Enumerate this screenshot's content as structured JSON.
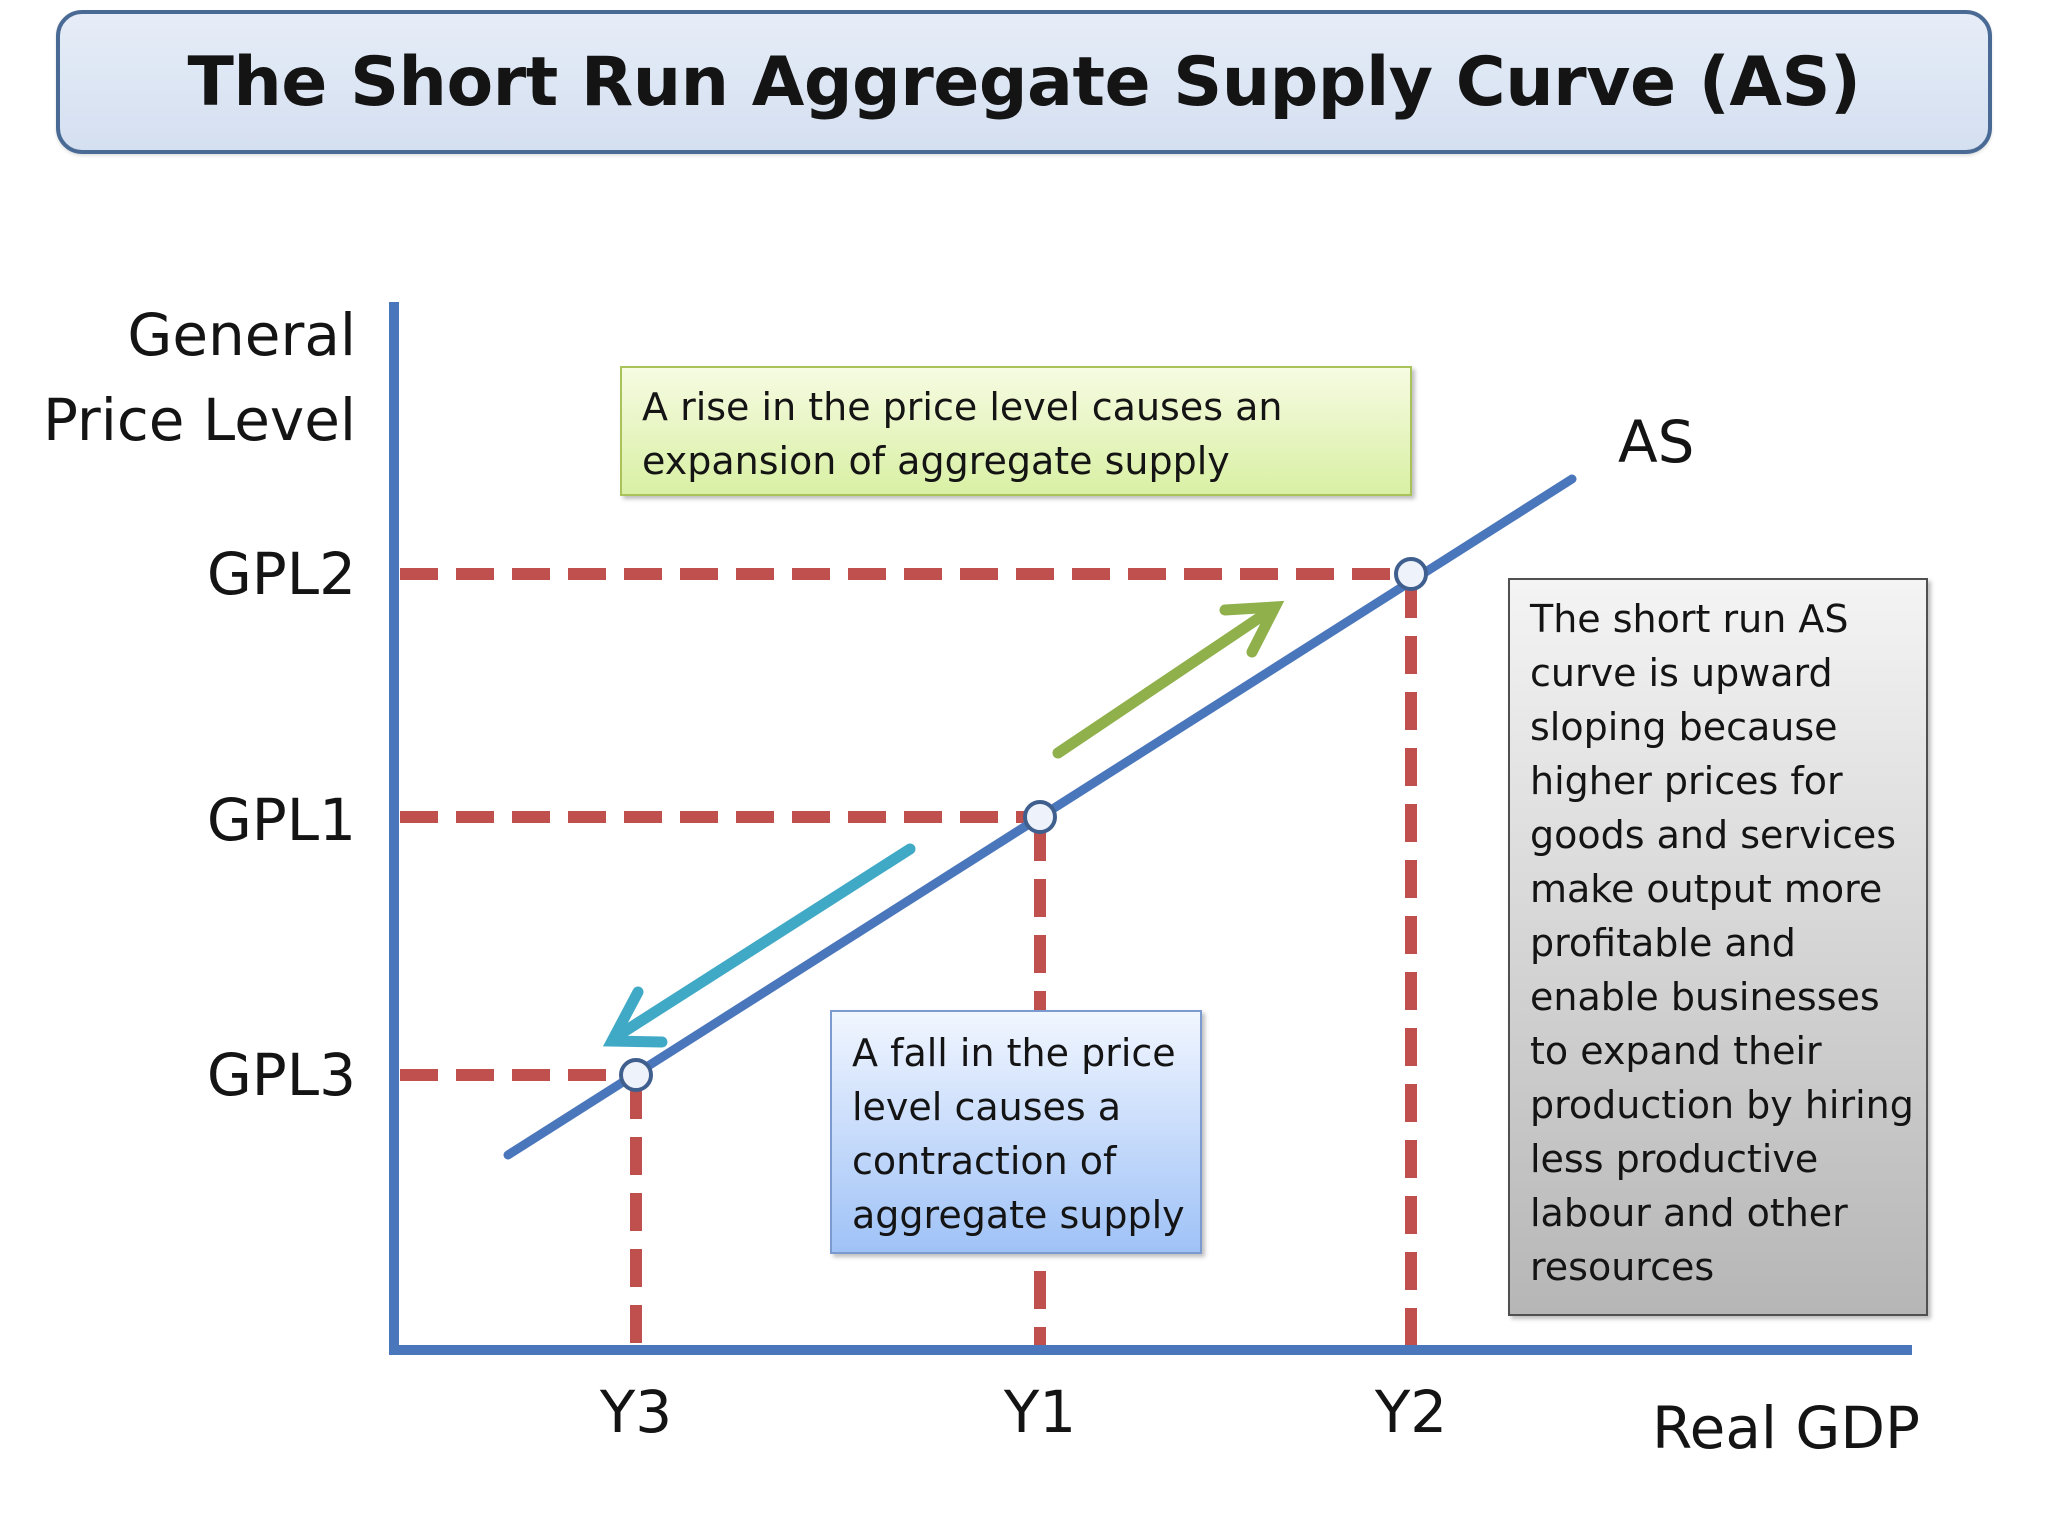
{
  "title": "The Short Run Aggregate Supply Curve (AS)",
  "axes": {
    "y_label_line1": "General",
    "y_label_line2": "Price Level",
    "x_label": "Real GDP"
  },
  "curve_label": "AS",
  "price_levels": [
    "GPL2",
    "GPL1",
    "GPL3"
  ],
  "output_levels": [
    "Y3",
    "Y1",
    "Y2"
  ],
  "callouts": {
    "rise": [
      "A rise in the price level causes an",
      "expansion of aggregate supply"
    ],
    "fall": [
      "A fall in the price",
      "level causes a",
      "contraction of",
      "aggregate supply"
    ],
    "note": [
      "The short run AS",
      "curve is upward",
      "sloping because",
      "higher prices for",
      "goods and services",
      "make output more",
      "profitable and",
      "enable businesses",
      "to expand their",
      "production by hiring",
      "less productive",
      "labour and other",
      "resources"
    ]
  },
  "colors": {
    "axis": "#4a76bb",
    "curve": "#4a76bb",
    "guide_lines": "#c0504d",
    "arrow_up": "#8fb04a",
    "arrow_down": "#3fa9c6"
  }
}
